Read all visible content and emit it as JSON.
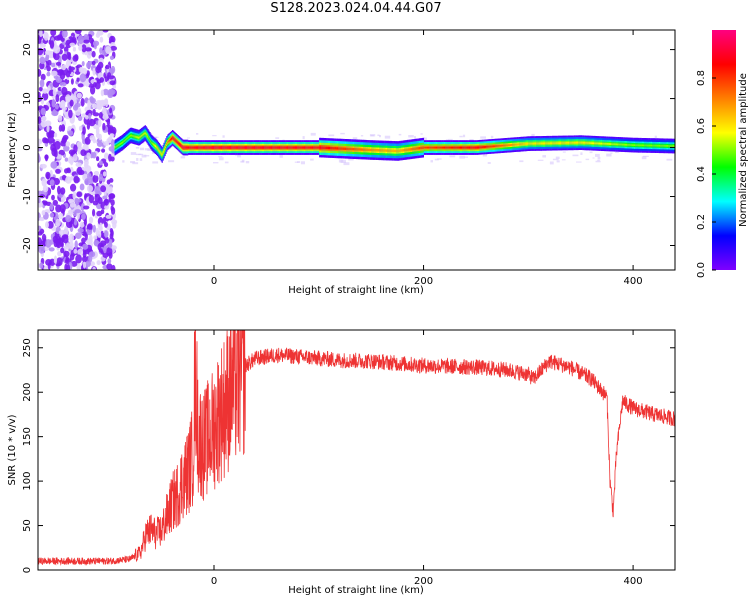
{
  "page": {
    "title": "S128.2023.024.04.44.G07"
  },
  "chart_data": [
    {
      "type": "heatmap",
      "title": "",
      "xlabel": "Height of straight line (km)",
      "ylabel": "Frequency (Hz)",
      "xlim": [
        -168,
        440
      ],
      "ylim": [
        -25,
        24
      ],
      "xticks": [
        0,
        200,
        400
      ],
      "yticks": [
        20,
        10,
        0,
        -10,
        -20
      ],
      "grid": false,
      "colorbar": {
        "label": "Normalized spectral amplitude",
        "range": [
          0,
          1
        ],
        "ticks": [
          "0.0",
          "0.2",
          "0.4",
          "0.6",
          "0.8"
        ],
        "colors": [
          "#ffffff",
          "#7f00ff",
          "#0000ff",
          "#00ffff",
          "#00ff00",
          "#ffff00",
          "#ff7f00",
          "#ff0000",
          "#ff0080"
        ]
      },
      "noise_region_x": [
        -168,
        -95
      ],
      "signal_centerline": {
        "x": [
          -95,
          -88,
          -80,
          -72,
          -66,
          -60,
          -55,
          -50,
          -45,
          -40,
          -35,
          -30,
          -25,
          0,
          100,
          150,
          175,
          200,
          250,
          300,
          350,
          400,
          440
        ],
        "freq": [
          0,
          1,
          2.5,
          2,
          3,
          1,
          0,
          -1.5,
          1,
          2,
          1,
          0,
          0,
          0,
          0,
          -0.5,
          -0.7,
          0,
          0,
          0.8,
          1,
          0.5,
          0.3
        ],
        "peak_amplitude": [
          0.5,
          0.5,
          0.5,
          0.55,
          0.55,
          0.5,
          0.6,
          0.6,
          0.7,
          0.9,
          0.9,
          0.95,
          0.9,
          0.95,
          0.9,
          0.7,
          0.65,
          0.8,
          0.9,
          0.6,
          0.6,
          0.5,
          0.5
        ]
      }
    },
    {
      "type": "line",
      "title": "",
      "xlabel": "Height of straight line (km)",
      "ylabel": "SNR (10 * v/v)",
      "xlim": [
        -168,
        440
      ],
      "ylim": [
        0,
        270
      ],
      "xticks": [
        0,
        200,
        400
      ],
      "yticks": [
        0,
        50,
        100,
        150,
        200,
        250
      ],
      "grid": false,
      "line_color": "#ee3333",
      "series": [
        {
          "x": [
            -168,
            -140,
            -120,
            -100,
            -80,
            -70,
            -65,
            -60,
            -55,
            -50,
            -45,
            -40,
            -35,
            -30,
            -25,
            -20,
            -18,
            -15,
            -10,
            -5,
            0,
            5,
            10,
            15,
            20,
            25,
            30,
            40,
            50,
            60,
            80,
            100,
            120,
            150,
            200,
            250,
            280,
            300,
            305,
            320,
            340,
            360,
            375,
            378,
            381,
            384,
            390,
            400,
            420,
            440
          ],
          "y": [
            10,
            10,
            10,
            10,
            12,
            20,
            40,
            45,
            40,
            45,
            60,
            75,
            85,
            100,
            110,
            130,
            230,
            150,
            140,
            150,
            160,
            175,
            185,
            200,
            210,
            220,
            230,
            238,
            240,
            242,
            240,
            238,
            236,
            235,
            230,
            228,
            225,
            220,
            215,
            235,
            228,
            215,
            195,
            100,
            65,
            130,
            190,
            182,
            175,
            170
          ]
        }
      ]
    }
  ]
}
